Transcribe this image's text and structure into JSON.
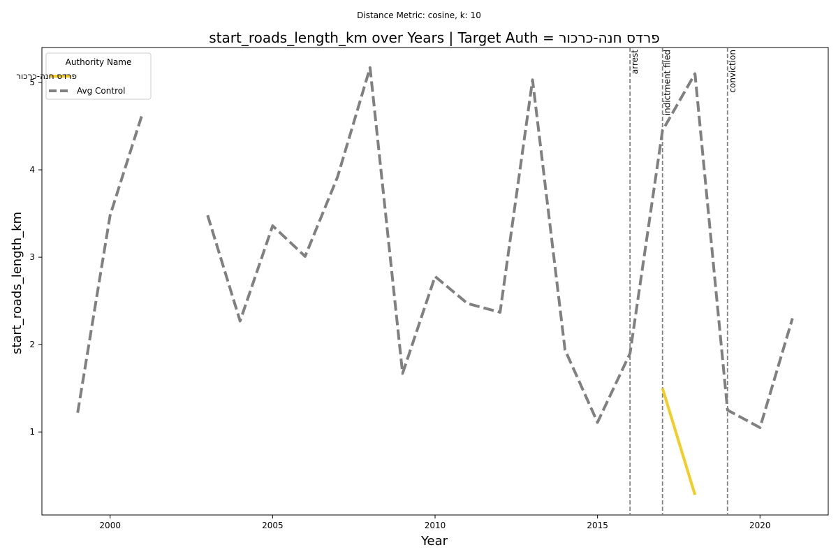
{
  "chart_data": {
    "type": "line",
    "suptitle": "Distance Metric: cosine, k: 10",
    "title": "start_roads_length_km over Years | Target Auth = פרדס חנה-כרכור",
    "xlabel": "Year",
    "ylabel": "start_roads_length_km",
    "xlim": [
      1997.9,
      2022.1
    ],
    "ylim": [
      0.05,
      5.4
    ],
    "xticks": [
      2000,
      2005,
      2010,
      2015,
      2020
    ],
    "yticks": [
      1,
      2,
      3,
      4,
      5
    ],
    "grid": false,
    "legend": {
      "title": "Authority Name",
      "placement": "top-left"
    },
    "series": [
      {
        "name": "פרדס חנה-כרכור",
        "color": "#f2cd23",
        "style": "solid",
        "points": [
          [
            2017,
            1.5
          ],
          [
            2018,
            0.28
          ]
        ]
      },
      {
        "name": "Avg Control",
        "color": "#808080",
        "style": "dashed",
        "points": [
          [
            1999,
            1.22
          ],
          [
            2000,
            3.48
          ],
          [
            2001,
            4.65
          ],
          [
            2002,
            null
          ],
          [
            2003,
            3.48
          ],
          [
            2004,
            2.27
          ],
          [
            2005,
            3.36
          ],
          [
            2006,
            3.01
          ],
          [
            2007,
            3.92
          ],
          [
            2008,
            5.17
          ],
          [
            2009,
            1.67
          ],
          [
            2010,
            2.78
          ],
          [
            2011,
            2.47
          ],
          [
            2012,
            2.37
          ],
          [
            2013,
            5.03
          ],
          [
            2014,
            1.94
          ],
          [
            2015,
            1.11
          ],
          [
            2016,
            1.9
          ],
          [
            2017,
            4.45
          ],
          [
            2018,
            5.1
          ],
          [
            2019,
            1.25
          ],
          [
            2020,
            1.05
          ],
          [
            2021,
            2.3
          ]
        ]
      }
    ],
    "events": [
      {
        "x": 2016,
        "label": "arrest"
      },
      {
        "x": 2017,
        "label": "indictment filed"
      },
      {
        "x": 2019,
        "label": "conviction"
      }
    ]
  }
}
